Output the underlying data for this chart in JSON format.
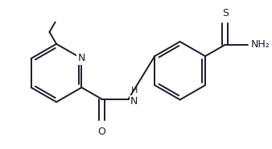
{
  "bg_color": "#ffffff",
  "line_color": "#1a1a2e",
  "figsize": [
    3.38,
    1.86
  ],
  "dpi": 100,
  "lw": 1.4,
  "atoms": {
    "N_label": "N",
    "NH_label": "H",
    "O_label": "O",
    "S_label": "S",
    "NH2_label": "NH₂"
  },
  "xlim": [
    0,
    338
  ],
  "ylim": [
    0,
    186
  ]
}
